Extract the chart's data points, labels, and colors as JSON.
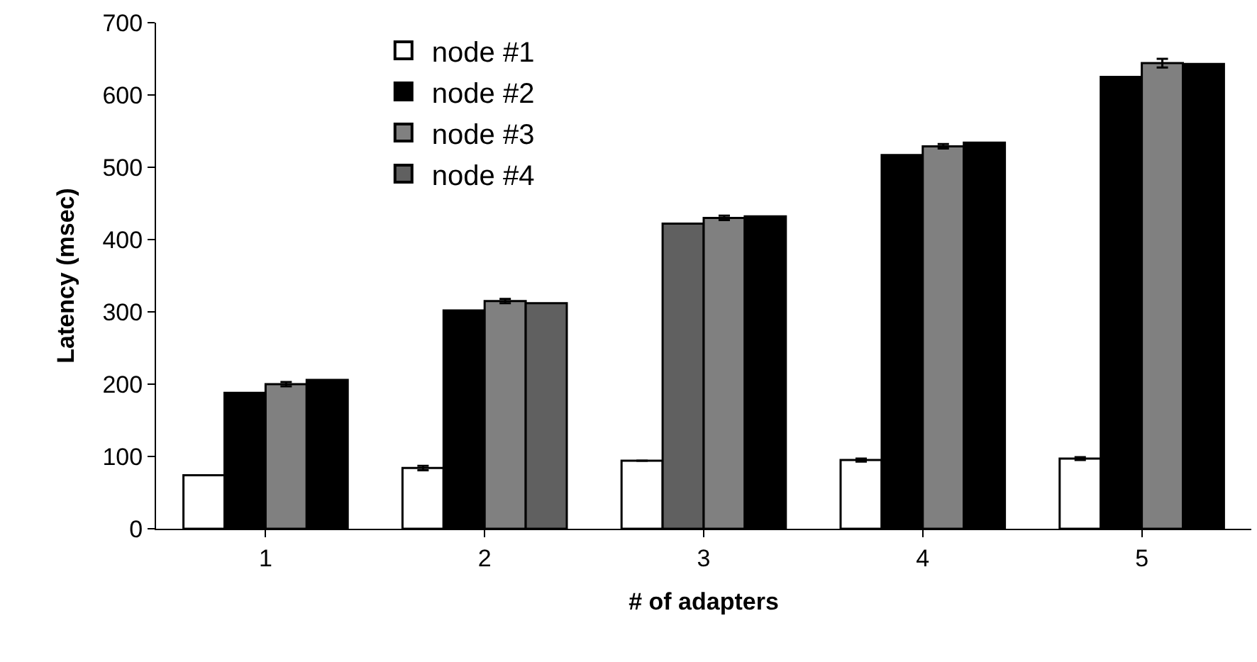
{
  "chart_data": {
    "type": "bar",
    "xlabel": "# of adapters",
    "ylabel": "Latency (msec)",
    "categories": [
      "1",
      "2",
      "3",
      "4",
      "5"
    ],
    "series": [
      {
        "name": "node #1",
        "color": "#ffffff",
        "values": [
          74,
          84,
          94,
          95,
          97
        ],
        "errors": [
          null,
          3,
          null,
          2,
          2
        ]
      },
      {
        "name": "node #2",
        "color": "#000000",
        "colors": [
          "#000000",
          "#000000",
          "#606060",
          "#000000",
          "#000000"
        ],
        "values": [
          188,
          302,
          422,
          517,
          625
        ]
      },
      {
        "name": "node #3",
        "color": "#808080",
        "values": [
          200,
          315,
          430,
          529,
          644
        ],
        "errors": [
          3,
          3,
          3,
          3,
          6
        ]
      },
      {
        "name": "node #4",
        "color": "#606060",
        "colors": [
          "#000000",
          "#606060",
          "#000000",
          "#000000",
          "#000000"
        ],
        "values": [
          206,
          312,
          432,
          534,
          643
        ]
      }
    ],
    "ylim": [
      0,
      700
    ],
    "yticks": [
      0,
      100,
      200,
      300,
      400,
      500,
      600,
      700
    ],
    "legend": "top left"
  }
}
